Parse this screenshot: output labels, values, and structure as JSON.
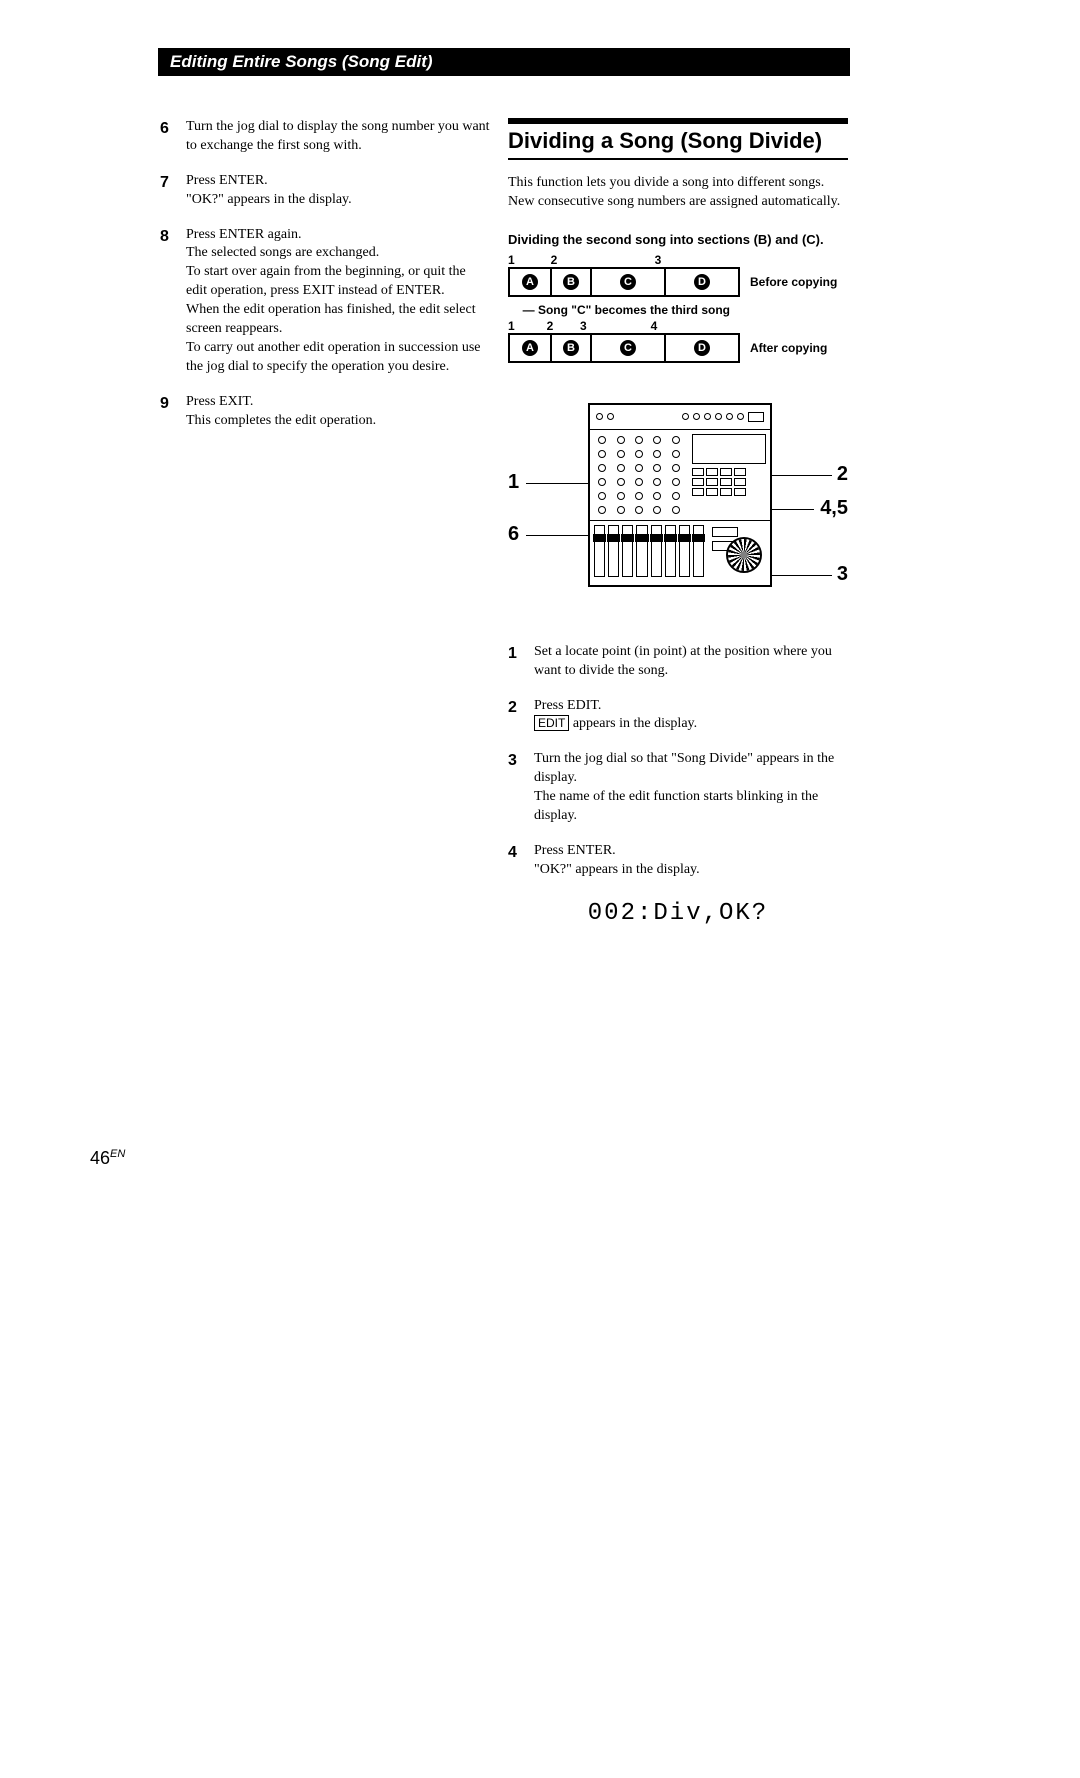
{
  "header": "Editing Entire Songs (Song Edit)",
  "left_steps": [
    {
      "num": "6",
      "text": "Turn the jog dial to display the song number you want to exchange the first song with."
    },
    {
      "num": "7",
      "text": "Press ENTER.\n\"OK?\" appears in the display."
    },
    {
      "num": "8",
      "text": "Press ENTER again.\nThe selected songs are exchanged.\nTo start over again from the beginning, or quit the edit operation, press EXIT instead of ENTER.\nWhen the edit operation has finished, the edit select screen reappears.\nTo carry out another edit operation in succession use the jog dial to specify the operation you desire."
    },
    {
      "num": "9",
      "text": "Press EXIT.\nThis completes the edit operation."
    }
  ],
  "section_title": "Dividing a Song (Song Divide)",
  "intro": "This function lets you divide a song into different songs. New consecutive song numbers are assigned automatically.",
  "diagram_caption": "Dividing the second song into sections (B) and (C).",
  "divide_diagram": {
    "row1_nums": [
      "1",
      "2",
      "3"
    ],
    "row1_cells": {
      "letters": [
        "A",
        "B",
        "C",
        "D"
      ],
      "widths": [
        40,
        38,
        72,
        72
      ]
    },
    "row1_label": "Before copying",
    "mid_annot": "Song \"C\" becomes the third song",
    "row2_nums": [
      "1",
      "2",
      "3",
      "4"
    ],
    "row2_cells": {
      "letters": [
        "A",
        "B",
        "C",
        "D"
      ],
      "widths": [
        40,
        38,
        72,
        72
      ]
    },
    "row2_label": "After copying"
  },
  "callouts": {
    "left_top": "1",
    "left_bottom": "6",
    "right_top": "2",
    "right_mid": "4,5",
    "right_bottom": "3"
  },
  "right_steps": [
    {
      "num": "1",
      "text": "Set a locate point (in point) at the position where you want to divide the song."
    },
    {
      "num": "2",
      "text_pre": "Press EDIT.",
      "boxed": "EDIT",
      "text_post": " appears in the display."
    },
    {
      "num": "3",
      "text": "Turn the jog dial so that \"Song Divide\" appears in the display.\nThe name of the edit function starts blinking in the display."
    },
    {
      "num": "4",
      "text": "Press ENTER.\n\"OK?\" appears in the display."
    }
  ],
  "lcd_text": "002:Div,OK?",
  "page_number": "46",
  "page_number_suffix": "EN"
}
